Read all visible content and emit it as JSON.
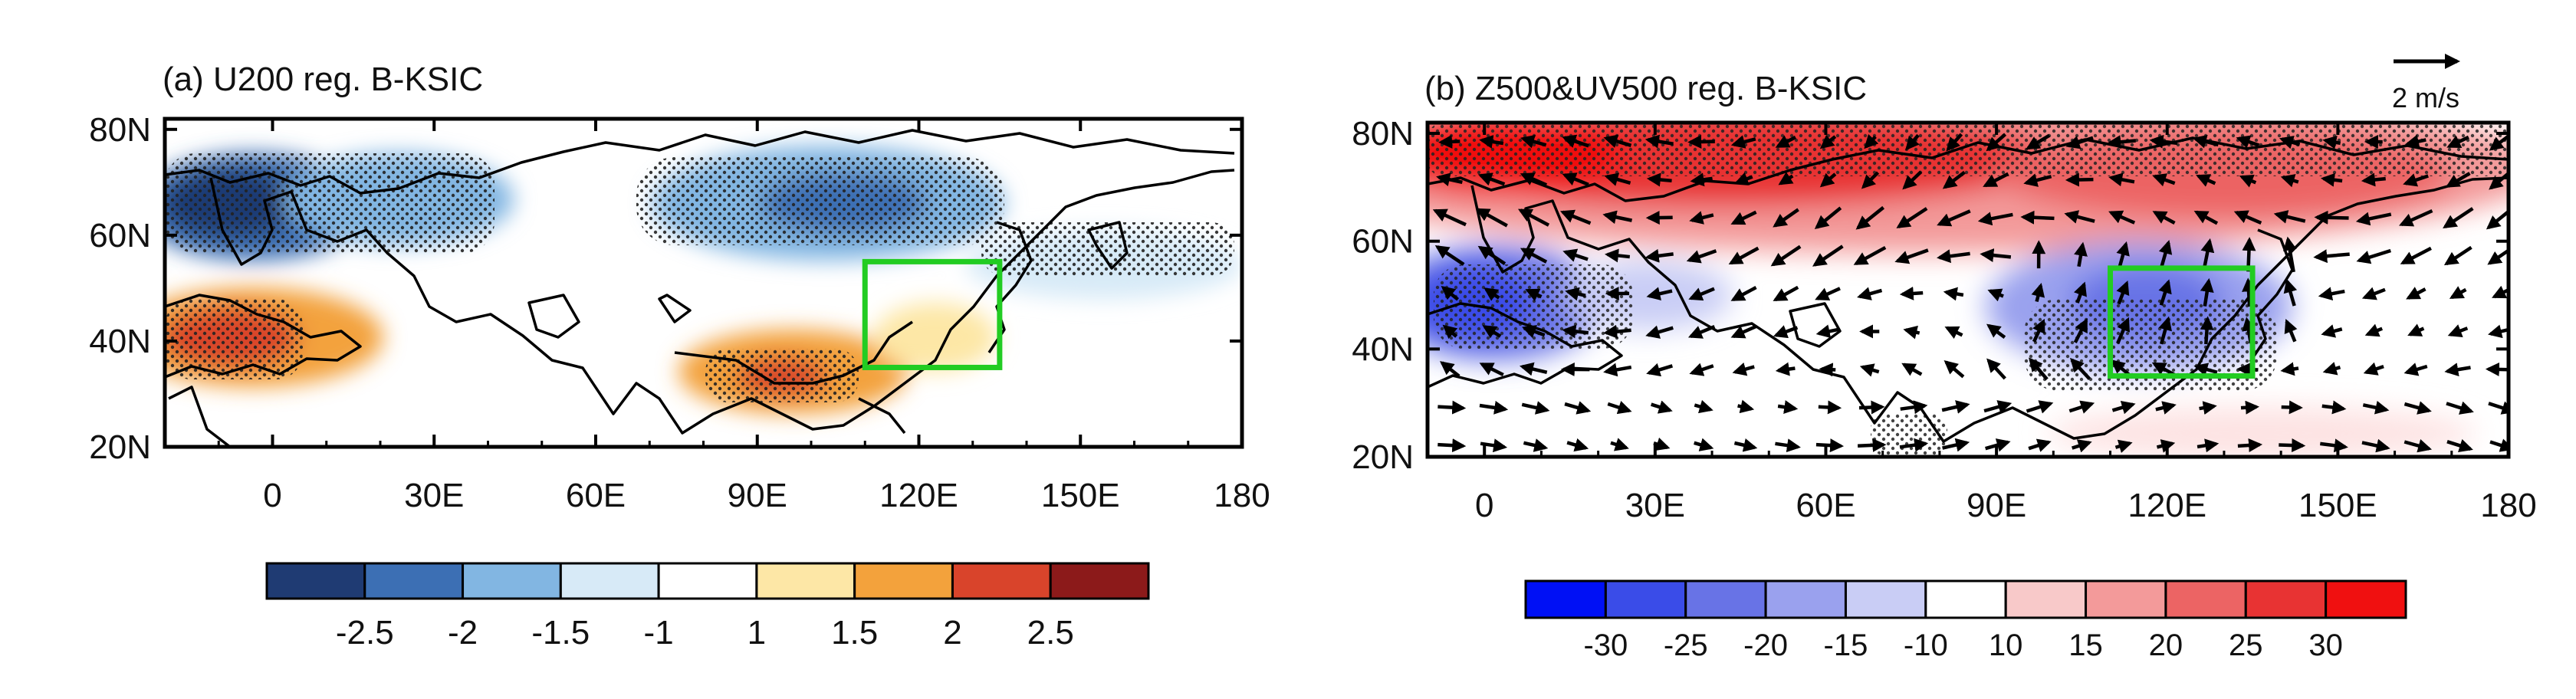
{
  "panel_a": {
    "title": "(a) U200 reg. B-KSIC",
    "lat_labels": [
      "80N",
      "60N",
      "40N",
      "20N"
    ],
    "lat_values": [
      80,
      60,
      40,
      20
    ],
    "lon_labels": [
      "0",
      "30E",
      "60E",
      "90E",
      "120E",
      "150E",
      "180"
    ],
    "lon_values": [
      0,
      30,
      60,
      90,
      120,
      150,
      180
    ],
    "box": {
      "lon": [
        110,
        135
      ],
      "lat": [
        35,
        55
      ]
    },
    "colorbar": {
      "labels": [
        "-2.5",
        "-2",
        "-1.5",
        "-1",
        "1",
        "1.5",
        "2",
        "2.5"
      ],
      "colors": [
        "#1f3b73",
        "#3c6fb4",
        "#82b6e2",
        "#d7eaf7",
        "#ffffff",
        "#fde7a6",
        "#f3a23c",
        "#d9442b",
        "#8c1a1a"
      ]
    }
  },
  "panel_b": {
    "title": "(b) Z500&UV500 reg. B-KSIC",
    "reference_vector": "2 m/s",
    "lat_labels": [
      "80N",
      "60N",
      "40N",
      "20N"
    ],
    "lat_values": [
      80,
      60,
      40,
      20
    ],
    "lon_labels": [
      "0",
      "30E",
      "60E",
      "90E",
      "120E",
      "150E",
      "180"
    ],
    "lon_values": [
      0,
      30,
      60,
      90,
      120,
      150,
      180
    ],
    "box": {
      "lon": [
        110,
        135
      ],
      "lat": [
        35,
        55
      ]
    },
    "colorbar": {
      "labels": [
        "-30",
        "-25",
        "-20",
        "-15",
        "-10",
        "10",
        "15",
        "20",
        "25",
        "30"
      ],
      "colors": [
        "#0010f5",
        "#3a4ce8",
        "#6873e6",
        "#9aa1ee",
        "#c9cdf5",
        "#ffffff",
        "#f8c9c9",
        "#f39a9a",
        "#ec6464",
        "#e83333",
        "#f01010"
      ]
    }
  },
  "colors": {
    "box": "#22cc22",
    "land": "#000000"
  }
}
